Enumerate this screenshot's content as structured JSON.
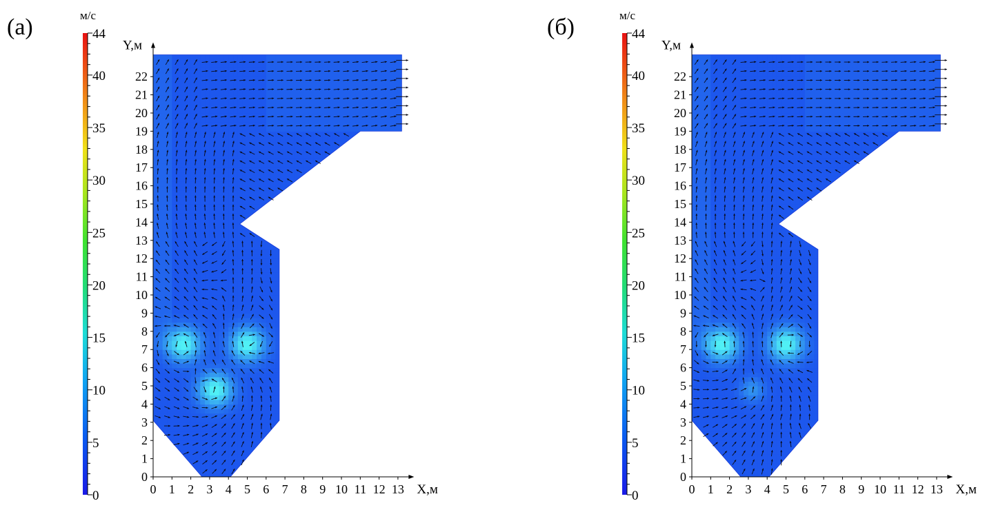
{
  "colorbar": {
    "unit": "м/с",
    "labels": [
      "44",
      "40",
      "35",
      "30",
      "25",
      "20",
      "15",
      "10",
      "5",
      "0"
    ],
    "range": [
      0,
      44
    ],
    "colors": [
      "#1e1ee6",
      "#0a5ef0",
      "#12a8f0",
      "#20e0d8",
      "#28e060",
      "#6ee622",
      "#e8e81a",
      "#f0a01a",
      "#f05a14",
      "#e81414"
    ]
  },
  "panels": [
    {
      "id": "a",
      "label": "(а)",
      "y_axis_title": "Y,м",
      "x_axis_title": "X,м",
      "x_ticks": [
        "0",
        "1",
        "2",
        "3",
        "4",
        "5",
        "6",
        "7",
        "8",
        "9",
        "10",
        "11",
        "12",
        "13"
      ],
      "y_ticks": [
        "0",
        "1",
        "2",
        "3",
        "4",
        "5",
        "6",
        "7",
        "8",
        "9",
        "10",
        "11",
        "12",
        "13",
        "14",
        "15",
        "16",
        "17",
        "18",
        "19",
        "20",
        "21",
        "22"
      ],
      "vortices": [
        {
          "x": 1.6,
          "y": 7.3,
          "sense": "ccw"
        },
        {
          "x": 5.0,
          "y": 7.3,
          "sense": "cw"
        },
        {
          "x": 3.3,
          "y": 4.8,
          "sense": "ccw"
        }
      ]
    },
    {
      "id": "b",
      "label": "(б)",
      "y_axis_title": "Y,м",
      "x_axis_title": "X,м",
      "x_ticks": [
        "0",
        "1",
        "2",
        "3",
        "4",
        "5",
        "6",
        "7",
        "8",
        "9",
        "10",
        "11",
        "12",
        "13"
      ],
      "y_ticks": [
        "0",
        "1",
        "2",
        "3",
        "4",
        "5",
        "6",
        "7",
        "8",
        "9",
        "10",
        "11",
        "12",
        "13",
        "14",
        "15",
        "16",
        "17",
        "18",
        "19",
        "20",
        "21",
        "22"
      ],
      "vortices": [
        {
          "x": 1.6,
          "y": 7.3,
          "sense": "ccw"
        },
        {
          "x": 5.0,
          "y": 7.3,
          "sense": "cw"
        },
        {
          "x": 3.2,
          "y": 4.8,
          "sense": "weak"
        }
      ]
    }
  ],
  "domain_shape_m": [
    [
      2.6,
      0
    ],
    [
      4.1,
      0
    ],
    [
      6.7,
      3.1
    ],
    [
      6.7,
      12.5
    ],
    [
      4.6,
      13.9
    ],
    [
      11,
      19
    ],
    [
      13.2,
      19
    ],
    [
      13.2,
      23.2
    ],
    [
      0,
      23.2
    ],
    [
      0,
      3.1
    ]
  ]
}
